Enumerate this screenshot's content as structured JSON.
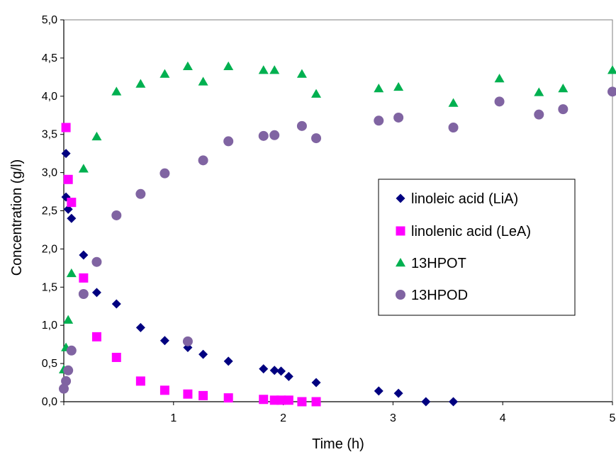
{
  "chart_data": {
    "type": "scatter",
    "xlabel": "Time (h)",
    "ylabel": "Concentration (g/l)",
    "xlim": [
      0,
      5
    ],
    "ylim": [
      0,
      5
    ],
    "x_ticks": [
      "1",
      "2",
      "3",
      "4",
      "5"
    ],
    "y_ticks": [
      "0,0",
      "0,5",
      "1,0",
      "1,5",
      "2,0",
      "2,5",
      "3,0",
      "3,5",
      "4,0",
      "4,5",
      "5,0"
    ],
    "grid": false,
    "legend_position": "right",
    "series": [
      {
        "name": "linoleic acid (LiA)",
        "marker": "diamond",
        "color": "#000080",
        "points": [
          [
            0.02,
            3.25
          ],
          [
            0.02,
            2.68
          ],
          [
            0.04,
            2.52
          ],
          [
            0.07,
            2.4
          ],
          [
            0.18,
            1.92
          ],
          [
            0.3,
            1.43
          ],
          [
            0.48,
            1.28
          ],
          [
            0.7,
            0.97
          ],
          [
            0.92,
            0.8
          ],
          [
            1.13,
            0.71
          ],
          [
            1.27,
            0.62
          ],
          [
            1.5,
            0.53
          ],
          [
            1.82,
            0.43
          ],
          [
            1.92,
            0.41
          ],
          [
            1.98,
            0.4
          ],
          [
            2.05,
            0.33
          ],
          [
            2.3,
            0.25
          ],
          [
            2.87,
            0.14
          ],
          [
            3.05,
            0.11
          ],
          [
            3.3,
            0.0
          ],
          [
            3.55,
            0.0
          ]
        ]
      },
      {
        "name": "linolenic acid (LeA)",
        "marker": "square",
        "color": "#ff00ff",
        "points": [
          [
            0.02,
            3.59
          ],
          [
            0.04,
            2.91
          ],
          [
            0.07,
            2.61
          ],
          [
            0.18,
            1.62
          ],
          [
            0.3,
            0.85
          ],
          [
            0.48,
            0.58
          ],
          [
            0.7,
            0.27
          ],
          [
            0.92,
            0.15
          ],
          [
            1.13,
            0.1
          ],
          [
            1.27,
            0.08
          ],
          [
            1.5,
            0.05
          ],
          [
            1.82,
            0.03
          ],
          [
            1.92,
            0.02
          ],
          [
            1.98,
            0.02
          ],
          [
            2.05,
            0.02
          ],
          [
            2.17,
            0.0
          ],
          [
            2.3,
            0.0
          ]
        ]
      },
      {
        "name": "13HPOT",
        "marker": "triangle",
        "color": "#00b050",
        "points": [
          [
            0.0,
            0.42
          ],
          [
            0.02,
            0.71
          ],
          [
            0.04,
            1.07
          ],
          [
            0.07,
            1.68
          ],
          [
            0.18,
            3.05
          ],
          [
            0.3,
            3.47
          ],
          [
            0.48,
            4.06
          ],
          [
            0.7,
            4.16
          ],
          [
            0.92,
            4.29
          ],
          [
            1.13,
            4.39
          ],
          [
            1.27,
            4.19
          ],
          [
            1.5,
            4.39
          ],
          [
            1.82,
            4.34
          ],
          [
            1.92,
            4.34
          ],
          [
            2.17,
            4.29
          ],
          [
            2.3,
            4.03
          ],
          [
            2.87,
            4.1
          ],
          [
            3.05,
            4.12
          ],
          [
            3.55,
            3.91
          ],
          [
            3.97,
            4.23
          ],
          [
            4.33,
            4.05
          ],
          [
            4.55,
            4.1
          ],
          [
            5.0,
            4.34
          ]
        ]
      },
      {
        "name": "13HPOD",
        "marker": "circle",
        "color": "#8064a2",
        "points": [
          [
            0.0,
            0.17
          ],
          [
            0.02,
            0.27
          ],
          [
            0.04,
            0.41
          ],
          [
            0.07,
            0.67
          ],
          [
            0.18,
            1.41
          ],
          [
            0.3,
            1.83
          ],
          [
            0.48,
            2.44
          ],
          [
            0.7,
            2.72
          ],
          [
            0.92,
            2.99
          ],
          [
            1.13,
            0.79
          ],
          [
            1.27,
            3.16
          ],
          [
            1.5,
            3.41
          ],
          [
            1.82,
            3.48
          ],
          [
            1.92,
            3.49
          ],
          [
            2.17,
            3.61
          ],
          [
            2.3,
            3.45
          ],
          [
            2.87,
            3.68
          ],
          [
            3.05,
            3.72
          ],
          [
            3.55,
            3.59
          ],
          [
            3.97,
            3.93
          ],
          [
            4.33,
            3.76
          ],
          [
            4.55,
            3.83
          ],
          [
            5.0,
            4.06
          ]
        ]
      }
    ]
  }
}
